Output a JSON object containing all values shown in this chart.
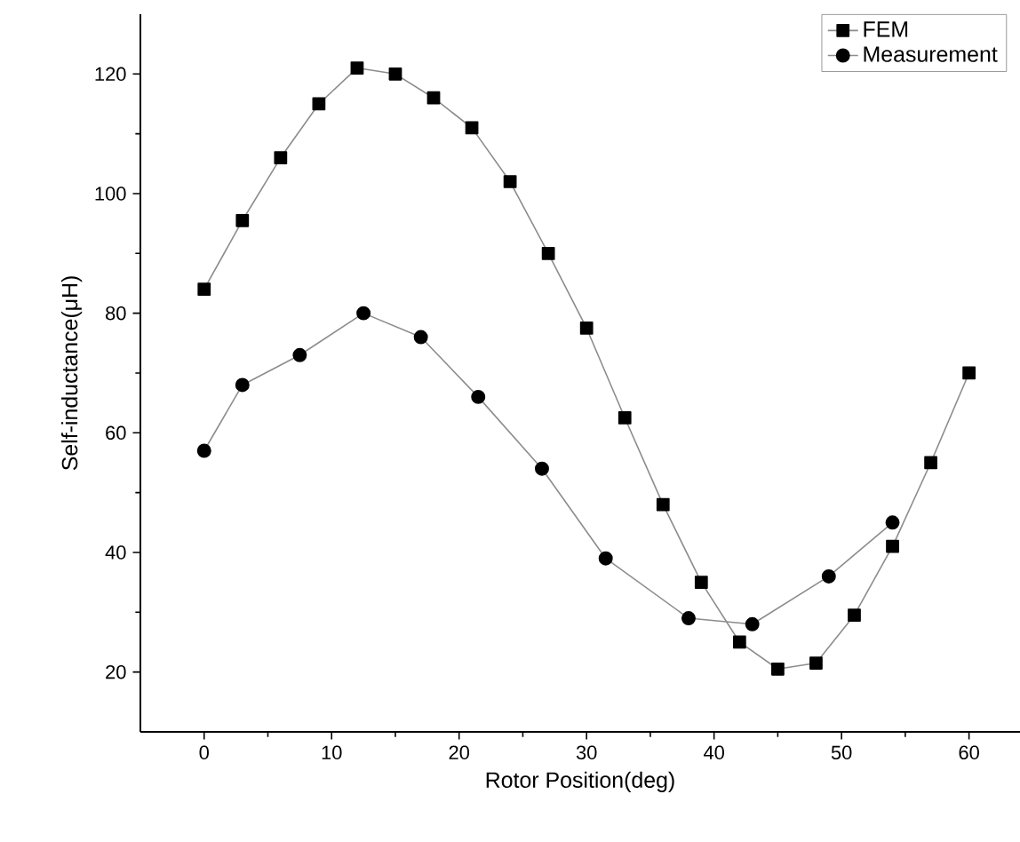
{
  "chart_data": {
    "type": "line",
    "xlabel": "Rotor Position(deg)",
    "ylabel": "Self-inductance(μH)",
    "xlim": [
      -5,
      64
    ],
    "ylim": [
      10,
      130
    ],
    "xticks": [
      0,
      10,
      20,
      30,
      40,
      50,
      60
    ],
    "yticks": [
      20,
      40,
      60,
      80,
      100,
      120
    ],
    "grid": false,
    "legend": "top right",
    "line_style": "solid",
    "series": [
      {
        "name": "FEM",
        "color": "#000000",
        "marker": "square",
        "x": [
          0,
          3,
          6,
          9,
          12,
          15,
          18,
          21,
          24,
          27,
          30,
          33,
          36,
          39,
          42,
          45,
          48,
          51,
          54,
          57,
          60
        ],
        "values": [
          84,
          95.5,
          106,
          115,
          121,
          120,
          116,
          111,
          102,
          90,
          77.5,
          62.5,
          48,
          35,
          25,
          20.5,
          21.5,
          29.5,
          41,
          55,
          70
        ]
      },
      {
        "name": "Measurement",
        "color": "#000000",
        "marker": "circle",
        "x": [
          0,
          3,
          7.5,
          12.5,
          17,
          21.5,
          26.5,
          31.5,
          38,
          43,
          49,
          54
        ],
        "values": [
          57,
          68,
          73,
          80,
          76,
          66,
          54,
          39,
          29,
          28,
          36,
          45
        ]
      }
    ]
  }
}
